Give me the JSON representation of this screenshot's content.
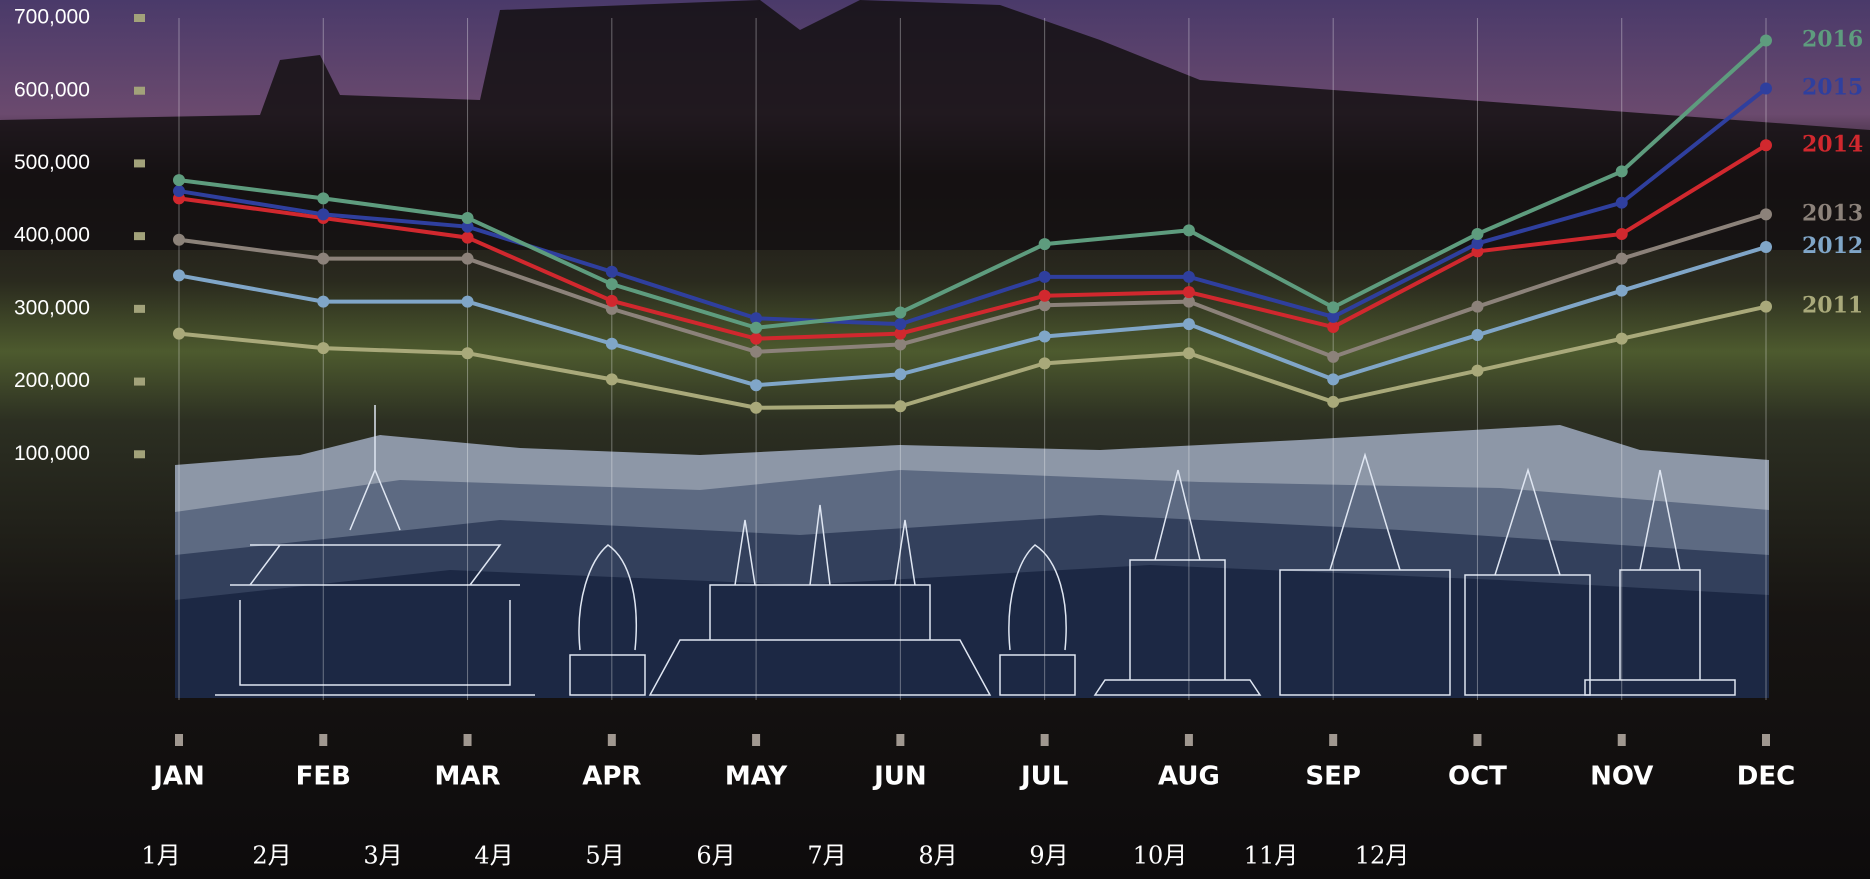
{
  "chart_data": {
    "type": "line",
    "categories": [
      "JAN",
      "FEB",
      "MAR",
      "APR",
      "MAY",
      "JUN",
      "JUL",
      "AUG",
      "SEP",
      "OCT",
      "NOV",
      "DEC"
    ],
    "secondary_labels": [
      "1月",
      "2月",
      "3月",
      "4月",
      "5月",
      "6月",
      "7月",
      "8月",
      "9月",
      "10月",
      "11月",
      "12月"
    ],
    "ylim": [
      0,
      700000
    ],
    "yticks": [
      {
        "value": 100000,
        "label": "100,000"
      },
      {
        "value": 200000,
        "label": "200,000"
      },
      {
        "value": 300000,
        "label": "300,000"
      },
      {
        "value": 400000,
        "label": "400,000"
      },
      {
        "value": 500000,
        "label": "500,000"
      },
      {
        "value": 600000,
        "label": "600,000"
      },
      {
        "value": 700000,
        "label": "700,000"
      }
    ],
    "series": [
      {
        "name": "2016",
        "color": "#5e9c7e",
        "values": [
          477000,
          452000,
          425000,
          334000,
          274000,
          295000,
          389000,
          408000,
          302000,
          403000,
          489000,
          669000
        ]
      },
      {
        "name": "2015",
        "color": "#2f3f9e",
        "values": [
          462000,
          430000,
          413000,
          351000,
          287000,
          279000,
          344000,
          344000,
          289000,
          390000,
          446000,
          603000
        ]
      },
      {
        "name": "2014",
        "color": "#d1282e",
        "values": [
          452000,
          425000,
          398000,
          311000,
          259000,
          266000,
          318000,
          323000,
          275000,
          379000,
          403000,
          525000
        ]
      },
      {
        "name": "2013",
        "color": "#8c827a",
        "values": [
          395000,
          369000,
          369000,
          300000,
          241000,
          251000,
          305000,
          310000,
          234000,
          303000,
          369000,
          430000
        ]
      },
      {
        "name": "2012",
        "color": "#80a6c8",
        "values": [
          346000,
          310000,
          310000,
          252000,
          195000,
          210000,
          262000,
          279000,
          203000,
          264000,
          325000,
          385000
        ]
      },
      {
        "name": "2011",
        "color": "#a9a97a",
        "values": [
          266000,
          246000,
          239000,
          203000,
          164000,
          166000,
          225000,
          239000,
          172000,
          215000,
          259000,
          303000
        ]
      }
    ]
  }
}
